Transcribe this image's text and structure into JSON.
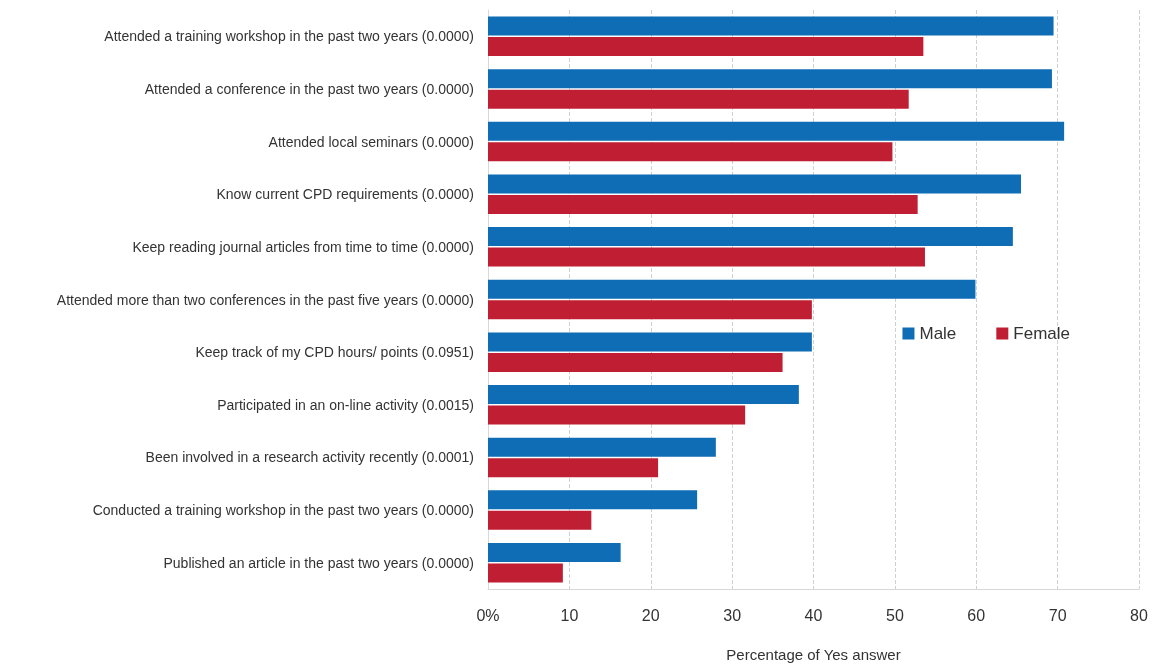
{
  "chart_data": {
    "type": "bar",
    "orientation": "horizontal",
    "xlabel": "Percentage of Yes answer",
    "categories": [
      "Attended a training workshop in the past two years (0.0000)",
      "Attended a conference in the past two years (0.0000)",
      "Attended local seminars (0.0000)",
      "Know current CPD requirements (0.0000)",
      "Keep reading journal articles from time to time (0.0000)",
      "Attended more than two conferences in the past five years (0.0000)",
      "Keep track of my CPD hours/ points (0.0951)",
      "Participated in an on-line activity (0.0015)",
      "Been involved in a research activity recently (0.0001)",
      "Conducted a training workshop in the past two years (0.0000)",
      "Published an article in the past two years (0.0000)"
    ],
    "series": [
      {
        "name": "Male",
        "color": "#0f6db6",
        "values": [
          69.5,
          69.3,
          70.8,
          65.5,
          64.5,
          59.9,
          39.8,
          38.2,
          28.0,
          25.7,
          16.3
        ]
      },
      {
        "name": "Female",
        "color": "#c01f33",
        "values": [
          53.5,
          51.7,
          49.7,
          52.8,
          53.7,
          39.8,
          36.2,
          31.6,
          20.9,
          12.7,
          9.2
        ]
      }
    ],
    "xlim": [
      0,
      80
    ],
    "xticks": [
      {
        "value": 0,
        "label": "0%"
      },
      10,
      20,
      30,
      40,
      50,
      60,
      70,
      80
    ],
    "grid": "x",
    "legend": "right"
  }
}
